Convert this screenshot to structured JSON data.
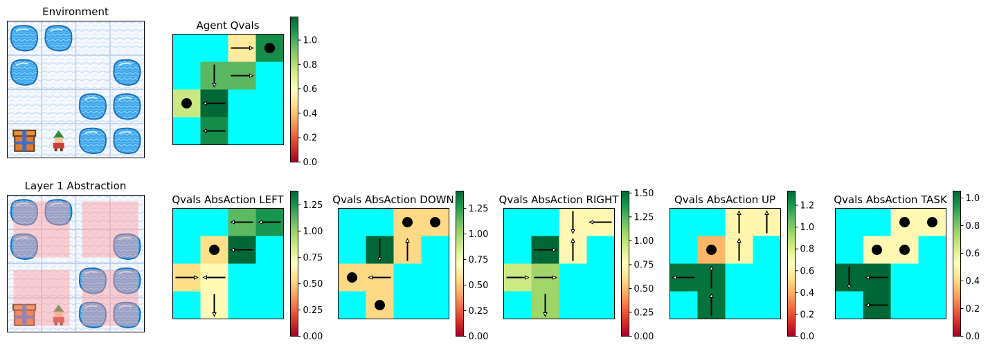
{
  "figure": {
    "env_title": "Environment",
    "abstraction_title": "Layer 1 Abstraction"
  },
  "colors": {
    "wall": "#00ffff",
    "arrow": "#000000",
    "dot": "#000000",
    "abstraction_overlay": "#ff9a9a",
    "colormap": "RdYlGn"
  },
  "environment": {
    "grid": [
      [
        "hole",
        "hole",
        "ice",
        "ice"
      ],
      [
        "hole",
        "ice",
        "ice",
        "hole"
      ],
      [
        "ice",
        "ice",
        "hole",
        "hole"
      ],
      [
        "goal",
        "agent",
        "hole",
        "hole"
      ]
    ],
    "icons": {
      "hole": "water-hole-icon",
      "ice": "snow-ice-icon",
      "goal": "present-box-icon",
      "agent": "elf-agent-icon"
    },
    "abstraction_groups": [
      {
        "rows": [
          0,
          1
        ],
        "cols": [
          0,
          1
        ]
      },
      {
        "rows": [
          0,
          1
        ],
        "cols": [
          2,
          3
        ]
      },
      {
        "rows": [
          2,
          3
        ],
        "cols": [
          0,
          1
        ]
      },
      {
        "rows": [
          2,
          3
        ],
        "cols": [
          2,
          3
        ]
      }
    ]
  },
  "chart_data": [
    {
      "type": "heatmap",
      "title": "Agent Qvals",
      "cells": [
        {
          "row": 0,
          "col": 2,
          "value": 0.52,
          "arrow": "right"
        },
        {
          "row": 0,
          "col": 3,
          "value": 1.1,
          "dot": true
        },
        {
          "row": 1,
          "col": 1,
          "value": 0.97,
          "arrow": "down"
        },
        {
          "row": 1,
          "col": 2,
          "value": 0.97,
          "arrow": "right"
        },
        {
          "row": 2,
          "col": 0,
          "value": 0.75,
          "dot": true
        },
        {
          "row": 2,
          "col": 1,
          "value": 1.19,
          "arrow": "left"
        },
        {
          "row": 3,
          "col": 1,
          "value": 1.1,
          "arrow": "left"
        }
      ],
      "colorbar": {
        "min": 0,
        "max": 1.19,
        "ticks": [
          "0.0",
          "0.2",
          "0.4",
          "0.6",
          "0.8",
          "1.0"
        ],
        "tick_values": [
          0,
          0.2,
          0.4,
          0.6,
          0.8,
          1.0
        ]
      }
    },
    {
      "type": "heatmap",
      "title": "Qvals AbsAction LEFT",
      "cells": [
        {
          "row": 0,
          "col": 2,
          "value": 1.12,
          "arrow": "left"
        },
        {
          "row": 0,
          "col": 3,
          "value": 1.25,
          "arrow": "left"
        },
        {
          "row": 1,
          "col": 1,
          "value": 0.55,
          "dot": true
        },
        {
          "row": 1,
          "col": 2,
          "value": 1.38,
          "arrow": "left"
        },
        {
          "row": 2,
          "col": 0,
          "value": 0.55,
          "arrow": "right"
        },
        {
          "row": 2,
          "col": 1,
          "value": 0.67,
          "arrow": "left"
        },
        {
          "row": 3,
          "col": 1,
          "value": 0.67,
          "arrow": "down"
        }
      ],
      "colorbar": {
        "min": 0,
        "max": 1.38,
        "ticks": [
          "0.00",
          "0.25",
          "0.50",
          "0.75",
          "1.00",
          "1.25"
        ],
        "tick_values": [
          0,
          0.25,
          0.5,
          0.75,
          1.0,
          1.25
        ]
      }
    },
    {
      "type": "heatmap",
      "title": "Qvals AbsAction DOWN",
      "cells": [
        {
          "row": 0,
          "col": 2,
          "value": 0.55,
          "dot": true
        },
        {
          "row": 0,
          "col": 3,
          "value": 0.55,
          "dot": true
        },
        {
          "row": 1,
          "col": 1,
          "value": 1.42,
          "arrow": "down"
        },
        {
          "row": 1,
          "col": 2,
          "value": 0.55,
          "arrow": "up"
        },
        {
          "row": 2,
          "col": 0,
          "value": 0.55,
          "dot": true
        },
        {
          "row": 2,
          "col": 1,
          "value": 0.55,
          "arrow": "left"
        },
        {
          "row": 3,
          "col": 1,
          "value": 0.55,
          "dot": true
        }
      ],
      "colorbar": {
        "min": 0,
        "max": 1.42,
        "ticks": [
          "0.00",
          "0.25",
          "0.50",
          "0.75",
          "1.00",
          "1.25"
        ],
        "tick_values": [
          0,
          0.25,
          0.5,
          0.75,
          1.0,
          1.25
        ]
      }
    },
    {
      "type": "heatmap",
      "title": "Qvals AbsAction RIGHT",
      "cells": [
        {
          "row": 0,
          "col": 2,
          "value": 0.72,
          "arrow": "down"
        },
        {
          "row": 0,
          "col": 3,
          "value": 0.72,
          "arrow": "left"
        },
        {
          "row": 1,
          "col": 1,
          "value": 1.52,
          "arrow": "right"
        },
        {
          "row": 1,
          "col": 2,
          "value": 0.72,
          "arrow": "up"
        },
        {
          "row": 2,
          "col": 0,
          "value": 0.95,
          "arrow": "right"
        },
        {
          "row": 2,
          "col": 1,
          "value": 1.08,
          "arrow": "right"
        },
        {
          "row": 3,
          "col": 1,
          "value": 1.08,
          "arrow": "down"
        }
      ],
      "colorbar": {
        "min": 0,
        "max": 1.52,
        "ticks": [
          "0.00",
          "0.25",
          "0.50",
          "0.75",
          "1.00",
          "1.25",
          "1.50"
        ],
        "tick_values": [
          0,
          0.25,
          0.5,
          0.75,
          1.0,
          1.25,
          1.5
        ]
      }
    },
    {
      "type": "heatmap",
      "title": "Qvals AbsAction UP",
      "cells": [
        {
          "row": 0,
          "col": 2,
          "value": 0.62,
          "arrow": "up"
        },
        {
          "row": 0,
          "col": 3,
          "value": 0.62,
          "arrow": "up"
        },
        {
          "row": 1,
          "col": 1,
          "value": 0.42,
          "dot": true
        },
        {
          "row": 1,
          "col": 2,
          "value": 0.62,
          "arrow": "up"
        },
        {
          "row": 2,
          "col": 0,
          "value": 1.3,
          "arrow": "left"
        },
        {
          "row": 2,
          "col": 1,
          "value": 1.3,
          "arrow": "up"
        },
        {
          "row": 3,
          "col": 1,
          "value": 1.3,
          "arrow": "up"
        }
      ],
      "colorbar": {
        "min": 0,
        "max": 1.33,
        "ticks": [
          "0.0",
          "0.2",
          "0.4",
          "0.6",
          "0.8",
          "1.0",
          "1.2"
        ],
        "tick_values": [
          0,
          0.2,
          0.4,
          0.6,
          0.8,
          1.0,
          1.2
        ]
      }
    },
    {
      "type": "heatmap",
      "title": "Qvals AbsAction TASK",
      "cells": [
        {
          "row": 0,
          "col": 2,
          "value": 0.5,
          "dot": true
        },
        {
          "row": 0,
          "col": 3,
          "value": 0.5,
          "dot": true
        },
        {
          "row": 1,
          "col": 1,
          "value": 0.5,
          "dot": true
        },
        {
          "row": 1,
          "col": 2,
          "value": 0.5,
          "dot": true
        },
        {
          "row": 2,
          "col": 0,
          "value": 1.05,
          "arrow": "down"
        },
        {
          "row": 2,
          "col": 1,
          "value": 1.05,
          "arrow": "left"
        },
        {
          "row": 3,
          "col": 1,
          "value": 1.05,
          "arrow": "left"
        }
      ],
      "colorbar": {
        "min": 0,
        "max": 1.05,
        "ticks": [
          "0.0",
          "0.2",
          "0.4",
          "0.6",
          "0.8",
          "1.0"
        ],
        "tick_values": [
          0,
          0.2,
          0.4,
          0.6,
          0.8,
          1.0
        ]
      }
    }
  ]
}
